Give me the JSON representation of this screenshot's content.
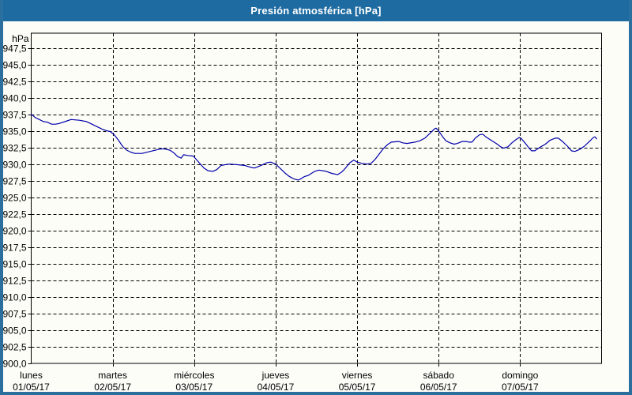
{
  "window": {
    "title": "Presión atmosférica [hPa]"
  },
  "colors": {
    "titlebar_bg": "#1e6ba1",
    "titlebar_text": "#ffffff",
    "frame_border": "#2b6f9f",
    "chart_bg": "#fdfdf8",
    "grid": "#000000",
    "axis": "#000000",
    "line": "#0000aa",
    "text": "#000000"
  },
  "chart_data": {
    "type": "line",
    "title": "Presión atmosférica [hPa]",
    "grid": "dashed",
    "legend": "none",
    "y_axis": {
      "unit": "hPa",
      "ylim": [
        900,
        949.7
      ],
      "tick_step": 2.5,
      "tick_labels": [
        "900,0",
        "902,5",
        "905,0",
        "907,5",
        "910,0",
        "912,5",
        "915,0",
        "917,5",
        "920,0",
        "922,5",
        "925,0",
        "927,5",
        "930,0",
        "932,5",
        "935,0",
        "937,5",
        "940,0",
        "942,5",
        "945,0",
        "947,5"
      ]
    },
    "x_axis": {
      "range_days": [
        0,
        7
      ],
      "labels_centered_on_day_start": true,
      "days": [
        {
          "name": "lunes",
          "date": "01/05/17"
        },
        {
          "name": "martes",
          "date": "02/05/17"
        },
        {
          "name": "miércoles",
          "date": "03/05/17"
        },
        {
          "name": "jueves",
          "date": "04/05/17"
        },
        {
          "name": "viernes",
          "date": "05/05/17"
        },
        {
          "name": "sábado",
          "date": "06/05/17"
        },
        {
          "name": "domingo",
          "date": "07/05/17"
        }
      ]
    },
    "series": [
      {
        "name": "Presión atmosférica",
        "color": "#0000aa",
        "points": [
          [
            0.0,
            937.5
          ],
          [
            0.05,
            937.0
          ],
          [
            0.1,
            936.7
          ],
          [
            0.15,
            936.4
          ],
          [
            0.2,
            936.3
          ],
          [
            0.25,
            936.0
          ],
          [
            0.3,
            936.0
          ],
          [
            0.34,
            936.1
          ],
          [
            0.44,
            936.5
          ],
          [
            0.49,
            936.7
          ],
          [
            0.59,
            936.6
          ],
          [
            0.68,
            936.4
          ],
          [
            0.78,
            935.8
          ],
          [
            0.83,
            935.5
          ],
          [
            0.88,
            935.2
          ],
          [
            0.93,
            935.0
          ],
          [
            0.97,
            934.9
          ],
          [
            1.02,
            934.4
          ],
          [
            1.07,
            933.6
          ],
          [
            1.12,
            932.7
          ],
          [
            1.17,
            932.1
          ],
          [
            1.22,
            931.8
          ],
          [
            1.27,
            931.6
          ],
          [
            1.36,
            931.6
          ],
          [
            1.46,
            931.9
          ],
          [
            1.56,
            932.2
          ],
          [
            1.62,
            932.3
          ],
          [
            1.7,
            932.1
          ],
          [
            1.75,
            931.7
          ],
          [
            1.8,
            931.1
          ],
          [
            1.84,
            930.9
          ],
          [
            1.87,
            931.4
          ],
          [
            1.92,
            931.3
          ],
          [
            1.99,
            931.2
          ],
          [
            2.04,
            930.5
          ],
          [
            2.09,
            929.8
          ],
          [
            2.12,
            929.4
          ],
          [
            2.17,
            929.0
          ],
          [
            2.23,
            928.9
          ],
          [
            2.28,
            929.2
          ],
          [
            2.33,
            929.8
          ],
          [
            2.43,
            930.0
          ],
          [
            2.53,
            929.9
          ],
          [
            2.62,
            929.8
          ],
          [
            2.7,
            929.5
          ],
          [
            2.74,
            929.4
          ],
          [
            2.82,
            929.8
          ],
          [
            2.89,
            930.2
          ],
          [
            2.94,
            930.3
          ],
          [
            3.0,
            930.0
          ],
          [
            3.06,
            929.3
          ],
          [
            3.11,
            928.7
          ],
          [
            3.16,
            928.2
          ],
          [
            3.2,
            927.9
          ],
          [
            3.24,
            927.7
          ],
          [
            3.28,
            927.6
          ],
          [
            3.31,
            927.8
          ],
          [
            3.35,
            928.1
          ],
          [
            3.4,
            928.3
          ],
          [
            3.48,
            928.9
          ],
          [
            3.53,
            929.1
          ],
          [
            3.62,
            928.9
          ],
          [
            3.69,
            928.6
          ],
          [
            3.76,
            928.4
          ],
          [
            3.81,
            928.8
          ],
          [
            3.85,
            929.3
          ],
          [
            3.91,
            930.2
          ],
          [
            3.96,
            930.6
          ],
          [
            4.0,
            930.3
          ],
          [
            4.06,
            930.1
          ],
          [
            4.12,
            930.0
          ],
          [
            4.17,
            930.1
          ],
          [
            4.22,
            930.7
          ],
          [
            4.27,
            931.5
          ],
          [
            4.32,
            932.3
          ],
          [
            4.37,
            932.9
          ],
          [
            4.42,
            933.3
          ],
          [
            4.51,
            933.4
          ],
          [
            4.56,
            933.2
          ],
          [
            4.61,
            933.1
          ],
          [
            4.71,
            933.3
          ],
          [
            4.77,
            933.5
          ],
          [
            4.83,
            933.9
          ],
          [
            4.9,
            934.7
          ],
          [
            4.95,
            935.3
          ],
          [
            4.97,
            935.4
          ],
          [
            5.0,
            935.0
          ],
          [
            5.05,
            934.1
          ],
          [
            5.09,
            933.5
          ],
          [
            5.14,
            933.2
          ],
          [
            5.19,
            933.0
          ],
          [
            5.23,
            933.1
          ],
          [
            5.29,
            933.4
          ],
          [
            5.34,
            933.4
          ],
          [
            5.37,
            933.3
          ],
          [
            5.41,
            933.3
          ],
          [
            5.45,
            933.9
          ],
          [
            5.5,
            934.4
          ],
          [
            5.54,
            934.5
          ],
          [
            5.58,
            934.1
          ],
          [
            5.63,
            933.7
          ],
          [
            5.68,
            933.3
          ],
          [
            5.72,
            933.0
          ],
          [
            5.76,
            932.6
          ],
          [
            5.8,
            932.4
          ],
          [
            5.85,
            932.6
          ],
          [
            5.9,
            933.2
          ],
          [
            5.95,
            933.7
          ],
          [
            5.99,
            934.0
          ],
          [
            6.01,
            933.9
          ],
          [
            6.06,
            933.2
          ],
          [
            6.11,
            932.4
          ],
          [
            6.14,
            932.0
          ],
          [
            6.18,
            932.0
          ],
          [
            6.24,
            932.5
          ],
          [
            6.31,
            933.0
          ],
          [
            6.37,
            933.6
          ],
          [
            6.43,
            933.9
          ],
          [
            6.47,
            933.9
          ],
          [
            6.52,
            933.4
          ],
          [
            6.58,
            932.7
          ],
          [
            6.63,
            932.0
          ],
          [
            6.67,
            931.9
          ],
          [
            6.73,
            932.2
          ],
          [
            6.79,
            932.7
          ],
          [
            6.85,
            933.4
          ],
          [
            6.9,
            934.0
          ],
          [
            6.92,
            934.1
          ],
          [
            6.94,
            933.8
          ]
        ]
      }
    ]
  }
}
